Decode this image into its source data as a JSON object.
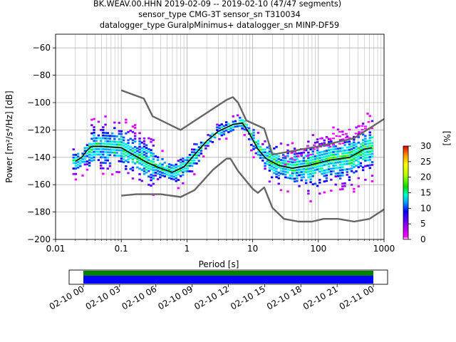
{
  "title_lines": [
    "BK.WEAV.00.HHN   2019-02-09 -- 2019-02-10  (47/47 segments)",
    "sensor_type CMG-3T sensor_sn T310034",
    "datalogger_type GuralpMinimus+ datalogger_sn MINP-DF59"
  ],
  "chart_data": [
    {
      "type": "heatmap",
      "xlabel": "Period [s]",
      "ylabel": "Power [m²/s⁴/Hz] [dB]",
      "xscale": "log",
      "xlim": [
        0.01,
        1000
      ],
      "ylim": [
        -200,
        -50
      ],
      "x_ticks": [
        0.01,
        0.1,
        1,
        10,
        100,
        1000
      ],
      "x_tick_labels": [
        "0.01",
        "0.1",
        "1",
        "10",
        "100",
        "1000"
      ],
      "y_ticks": [
        -200,
        -180,
        -160,
        -140,
        -120,
        -100,
        -80,
        -60
      ],
      "y_tick_labels": [
        "−200",
        "−180",
        "−160",
        "−140",
        "−120",
        "−100",
        "−80",
        "−60"
      ],
      "grid": true,
      "colorbar": {
        "label": "[%]",
        "range": [
          0,
          30
        ],
        "ticks": [
          0,
          5,
          10,
          15,
          20,
          25,
          30
        ],
        "tick_labels": [
          "0",
          "5",
          "10",
          "15",
          "20",
          "25",
          "30"
        ]
      },
      "series": [
        {
          "role": "noise-model-high",
          "color": "#666666",
          "points": [
            [
              0.1,
              -91
            ],
            [
              0.22,
              -97
            ],
            [
              0.3,
              -110
            ],
            [
              0.8,
              -120
            ],
            [
              4,
              -98
            ],
            [
              5,
              -96
            ],
            [
              6,
              -100
            ],
            [
              8,
              -113
            ],
            [
              15,
              -119
            ],
            [
              20,
              -138
            ],
            [
              100,
              -132
            ],
            [
              350,
              -126
            ],
            [
              1000,
              -112
            ]
          ]
        },
        {
          "role": "noise-model-low",
          "color": "#666666",
          "points": [
            [
              0.1,
              -168
            ],
            [
              0.17,
              -167
            ],
            [
              0.4,
              -167
            ],
            [
              0.8,
              -169
            ],
            [
              1.3,
              -164
            ],
            [
              2.5,
              -149
            ],
            [
              4,
              -141
            ],
            [
              4.6,
              -141
            ],
            [
              6,
              -150
            ],
            [
              10,
              -163
            ],
            [
              12,
              -166
            ],
            [
              15,
              -162
            ],
            [
              20,
              -177
            ],
            [
              30,
              -185
            ],
            [
              50,
              -187
            ],
            [
              80,
              -187
            ],
            [
              120,
              -185
            ],
            [
              200,
              -185
            ],
            [
              350,
              -187
            ],
            [
              600,
              -185
            ],
            [
              1000,
              -178
            ]
          ]
        },
        {
          "role": "mode",
          "color": "#000000",
          "points": [
            [
              0.02,
              -143
            ],
            [
              0.025,
              -140
            ],
            [
              0.03,
              -135
            ],
            [
              0.035,
              -132
            ],
            [
              0.05,
              -132
            ],
            [
              0.1,
              -133
            ],
            [
              0.15,
              -138
            ],
            [
              0.25,
              -144
            ],
            [
              0.4,
              -148
            ],
            [
              0.6,
              -151
            ],
            [
              0.9,
              -147
            ],
            [
              1.2,
              -140
            ],
            [
              2,
              -128
            ],
            [
              3,
              -121
            ],
            [
              5,
              -116
            ],
            [
              7,
              -115
            ],
            [
              9,
              -123
            ],
            [
              12,
              -134
            ],
            [
              16,
              -141
            ],
            [
              25,
              -146
            ],
            [
              40,
              -148
            ],
            [
              70,
              -146
            ],
            [
              150,
              -142
            ],
            [
              300,
              -140
            ],
            [
              500,
              -134
            ],
            [
              650,
              -133
            ]
          ]
        }
      ]
    },
    {
      "type": "timeline",
      "x_ticks": [
        "02-10 00",
        "02-10 03",
        "02-10 06",
        "02-10 09",
        "02-10 12",
        "02-10 15",
        "02-10 18",
        "02-10 21",
        "02-11 00"
      ],
      "coverage_colors": [
        "#008000",
        "#0000ff"
      ]
    }
  ]
}
